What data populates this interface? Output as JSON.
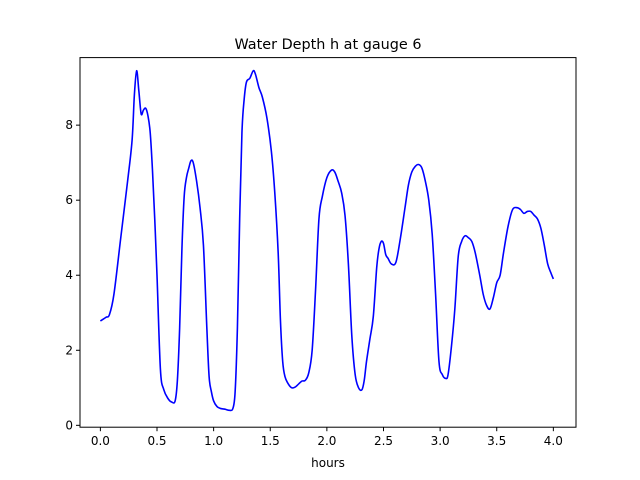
{
  "chart_data": {
    "type": "line",
    "title": "Water Depth h at gauge 6",
    "xlabel": "hours",
    "ylabel": "",
    "xlim": [
      -0.18,
      4.2
    ],
    "ylim": [
      -0.05,
      9.8
    ],
    "x_ticks": [
      0.0,
      0.5,
      1.0,
      1.5,
      2.0,
      2.5,
      3.0,
      3.5,
      4.0
    ],
    "x_tick_labels": [
      "0.0",
      "0.5",
      "1.0",
      "1.5",
      "2.0",
      "2.5",
      "3.0",
      "3.5",
      "4.0"
    ],
    "y_ticks": [
      0,
      2,
      4,
      6,
      8
    ],
    "y_tick_labels": [
      "0",
      "2",
      "4",
      "6",
      "8"
    ],
    "grid": false,
    "legend": "none",
    "series": [
      {
        "color": "#0000ff",
        "x": [
          0.0,
          0.05,
          0.08,
          0.12,
          0.18,
          0.24,
          0.28,
          0.3,
          0.32,
          0.34,
          0.36,
          0.38,
          0.4,
          0.42,
          0.44,
          0.46,
          0.48,
          0.5,
          0.53,
          0.56,
          0.6,
          0.63,
          0.66,
          0.68,
          0.7,
          0.72,
          0.74,
          0.76,
          0.78,
          0.8,
          0.82,
          0.85,
          0.88,
          0.91,
          0.94,
          0.96,
          0.98,
          1.0,
          1.03,
          1.06,
          1.1,
          1.14,
          1.17,
          1.19,
          1.21,
          1.23,
          1.25,
          1.27,
          1.29,
          1.32,
          1.35,
          1.37,
          1.4,
          1.43,
          1.47,
          1.51,
          1.54,
          1.57,
          1.59,
          1.61,
          1.63,
          1.66,
          1.69,
          1.72,
          1.75,
          1.78,
          1.81,
          1.84,
          1.87,
          1.9,
          1.93,
          1.96,
          2.0,
          2.04,
          2.07,
          2.1,
          2.13,
          2.16,
          2.19,
          2.22,
          2.25,
          2.28,
          2.31,
          2.33,
          2.35,
          2.38,
          2.41,
          2.44,
          2.46,
          2.48,
          2.5,
          2.52,
          2.54,
          2.57,
          2.61,
          2.65,
          2.69,
          2.72,
          2.75,
          2.78,
          2.81,
          2.84,
          2.87,
          2.9,
          2.93,
          2.96,
          2.99,
          3.02,
          3.05,
          3.07,
          3.1,
          3.13,
          3.16,
          3.19,
          3.22,
          3.25,
          3.28,
          3.31,
          3.35,
          3.38,
          3.41,
          3.44,
          3.47,
          3.5,
          3.53,
          3.56,
          3.6,
          3.64,
          3.68,
          3.71,
          3.74,
          3.77,
          3.8,
          3.83,
          3.86,
          3.89,
          3.92,
          3.95,
          3.98,
          4.0
        ],
        "y": [
          2.78,
          2.88,
          2.95,
          3.5,
          5.0,
          6.5,
          7.6,
          8.8,
          9.45,
          8.9,
          8.3,
          8.4,
          8.45,
          8.25,
          7.8,
          6.8,
          5.5,
          4.0,
          1.5,
          0.95,
          0.7,
          0.62,
          0.65,
          1.2,
          2.6,
          4.7,
          6.1,
          6.6,
          6.85,
          7.05,
          7.0,
          6.5,
          5.8,
          4.8,
          2.6,
          1.3,
          0.9,
          0.65,
          0.5,
          0.45,
          0.43,
          0.4,
          0.45,
          0.9,
          2.6,
          5.5,
          7.8,
          8.7,
          9.15,
          9.25,
          9.45,
          9.35,
          9.0,
          8.75,
          8.2,
          7.3,
          6.2,
          4.6,
          2.8,
          1.7,
          1.3,
          1.1,
          1.0,
          1.02,
          1.1,
          1.18,
          1.2,
          1.4,
          2.0,
          3.6,
          5.5,
          6.1,
          6.6,
          6.8,
          6.75,
          6.5,
          6.2,
          5.6,
          4.3,
          2.4,
          1.35,
          1.0,
          0.95,
          1.2,
          1.7,
          2.3,
          2.9,
          4.2,
          4.7,
          4.9,
          4.85,
          4.55,
          4.45,
          4.3,
          4.35,
          5.0,
          5.8,
          6.4,
          6.75,
          6.9,
          6.95,
          6.85,
          6.5,
          6.0,
          5.1,
          3.5,
          1.7,
          1.35,
          1.25,
          1.35,
          2.1,
          3.1,
          4.5,
          4.9,
          5.05,
          5.0,
          4.9,
          4.6,
          4.0,
          3.5,
          3.2,
          3.1,
          3.4,
          3.8,
          4.0,
          4.6,
          5.3,
          5.75,
          5.8,
          5.75,
          5.65,
          5.7,
          5.7,
          5.6,
          5.5,
          5.25,
          4.8,
          4.3,
          4.05,
          3.9
        ]
      }
    ]
  }
}
